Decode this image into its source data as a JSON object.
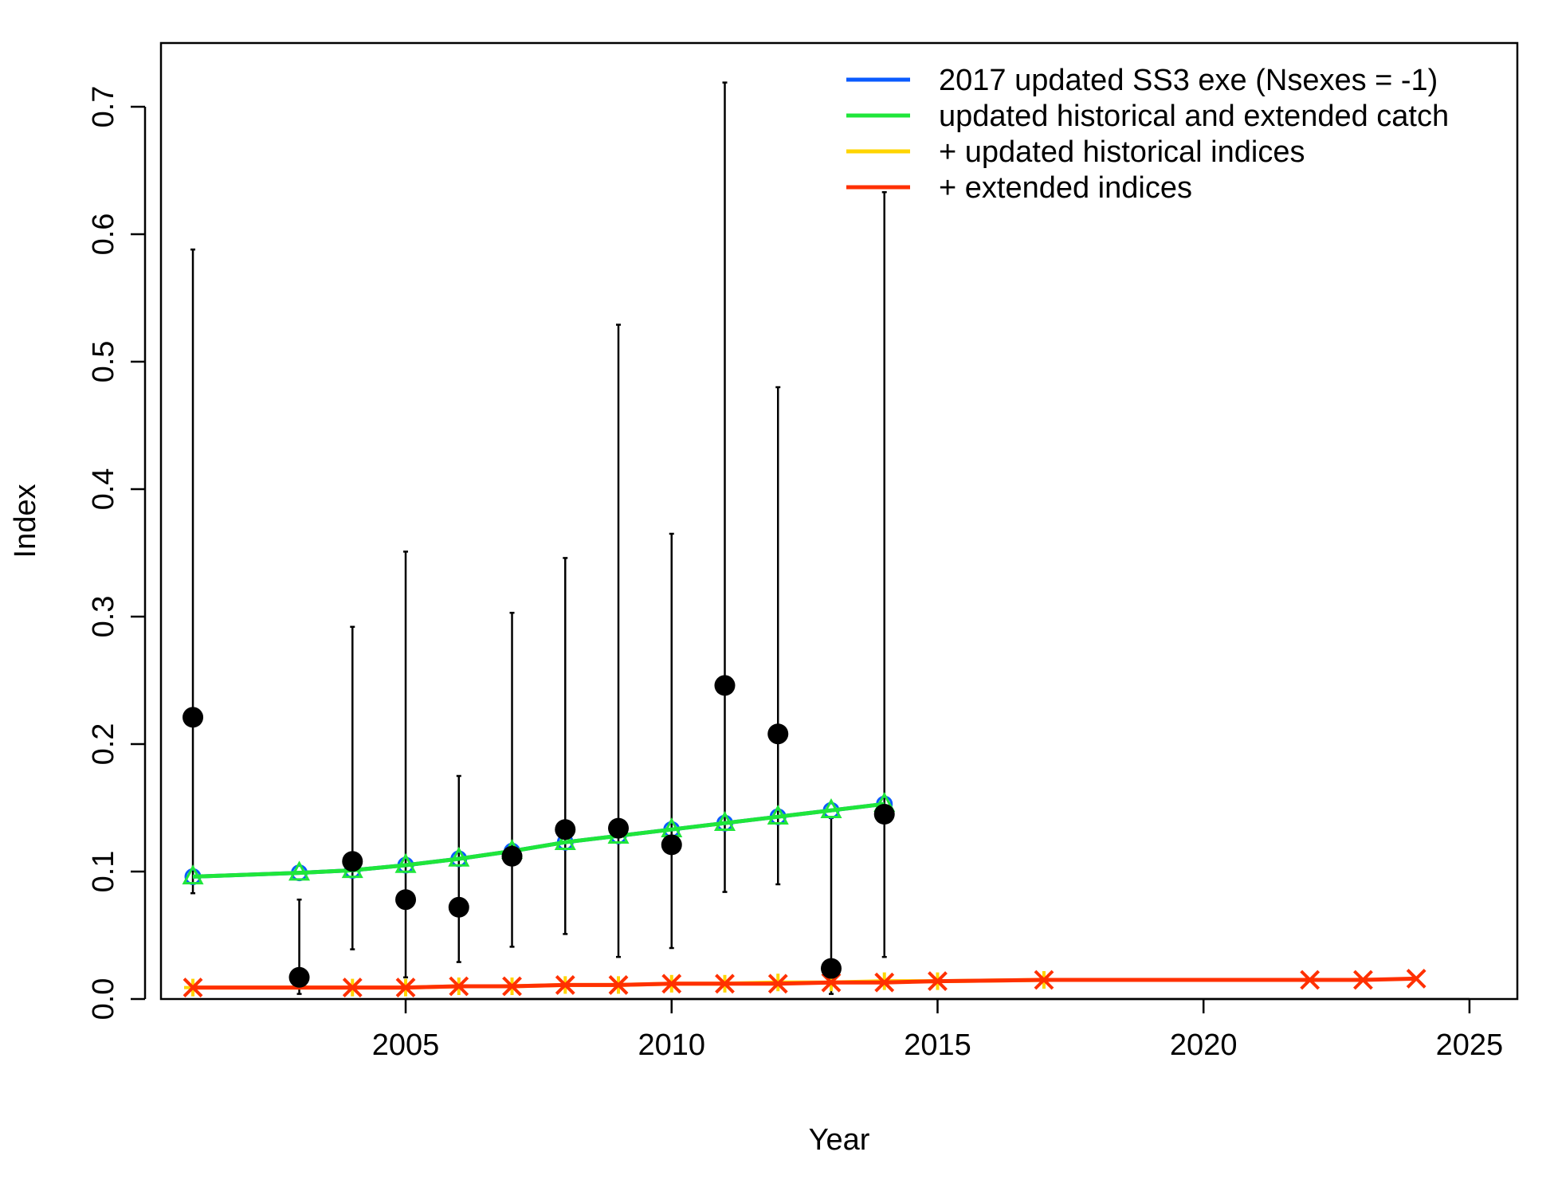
{
  "chart_data": {
    "type": "line",
    "xlabel": "Year",
    "ylabel": "Index",
    "xlim": [
      2000.4,
      2025.9
    ],
    "ylim": [
      0,
      0.75
    ],
    "x_ticks": [
      2005,
      2010,
      2015,
      2020,
      2025
    ],
    "x_tick_labels": [
      "2005",
      "2010",
      "2015",
      "2020",
      "2025"
    ],
    "y_ticks": [
      0,
      0.1,
      0.2,
      0.3,
      0.4,
      0.5,
      0.6,
      0.7
    ],
    "y_tick_labels": [
      "0.0",
      "0.1",
      "0.2",
      "0.3",
      "0.4",
      "0.5",
      "0.6",
      "0.7"
    ],
    "grid": false,
    "legend_position": "top-right",
    "observed": {
      "x": [
        2001,
        2003,
        2004,
        2005,
        2006,
        2007,
        2008,
        2009,
        2010,
        2011,
        2012,
        2013,
        2014
      ],
      "y": [
        0.221,
        0.017,
        0.108,
        0.078,
        0.072,
        0.112,
        0.133,
        0.134,
        0.121,
        0.246,
        0.208,
        0.024,
        0.145
      ],
      "lower": [
        0.083,
        0.004,
        0.039,
        0.017,
        0.029,
        0.041,
        0.051,
        0.033,
        0.04,
        0.084,
        0.09,
        0.004,
        0.033
      ],
      "upper": [
        0.588,
        0.078,
        0.292,
        0.351,
        0.175,
        0.303,
        0.346,
        0.529,
        0.365,
        0.719,
        0.48,
        0.142,
        0.633
      ],
      "color": "#000000"
    },
    "series": [
      {
        "name": "2017 updated SS3 exe (Nsexes = -1)",
        "color": "#0a5bff",
        "marker": "circle",
        "x": [
          2001,
          2003,
          2004,
          2005,
          2006,
          2007,
          2008,
          2009,
          2010,
          2011,
          2012,
          2013,
          2014
        ],
        "y": [
          0.096,
          0.099,
          0.101,
          0.105,
          0.11,
          0.116,
          0.123,
          0.128,
          0.133,
          0.138,
          0.143,
          0.148,
          0.153
        ]
      },
      {
        "name": "updated historical and extended catch",
        "color": "#1fe63a",
        "marker": "triangle",
        "x": [
          2001,
          2003,
          2004,
          2005,
          2006,
          2007,
          2008,
          2009,
          2010,
          2011,
          2012,
          2013,
          2014
        ],
        "y": [
          0.096,
          0.099,
          0.101,
          0.105,
          0.11,
          0.116,
          0.123,
          0.128,
          0.133,
          0.138,
          0.143,
          0.148,
          0.153
        ]
      },
      {
        "name": "+ updated historical indices",
        "color": "#ffd500",
        "marker": "plus",
        "x": [
          2001,
          2004,
          2005,
          2006,
          2007,
          2008,
          2009,
          2010,
          2011,
          2012,
          2013,
          2014,
          2015,
          2017
        ],
        "y": [
          0.009,
          0.009,
          0.009,
          0.01,
          0.01,
          0.011,
          0.011,
          0.012,
          0.012,
          0.013,
          0.013,
          0.014,
          0.014,
          0.015
        ]
      },
      {
        "name": "+ extended indices",
        "color": "#ff3000",
        "marker": "cross",
        "x": [
          2001,
          2004,
          2005,
          2006,
          2007,
          2008,
          2009,
          2010,
          2011,
          2012,
          2013,
          2014,
          2015,
          2017,
          2022,
          2023,
          2024
        ],
        "y": [
          0.009,
          0.009,
          0.009,
          0.01,
          0.01,
          0.011,
          0.011,
          0.012,
          0.012,
          0.012,
          0.013,
          0.013,
          0.014,
          0.015,
          0.015,
          0.015,
          0.016
        ]
      }
    ]
  }
}
